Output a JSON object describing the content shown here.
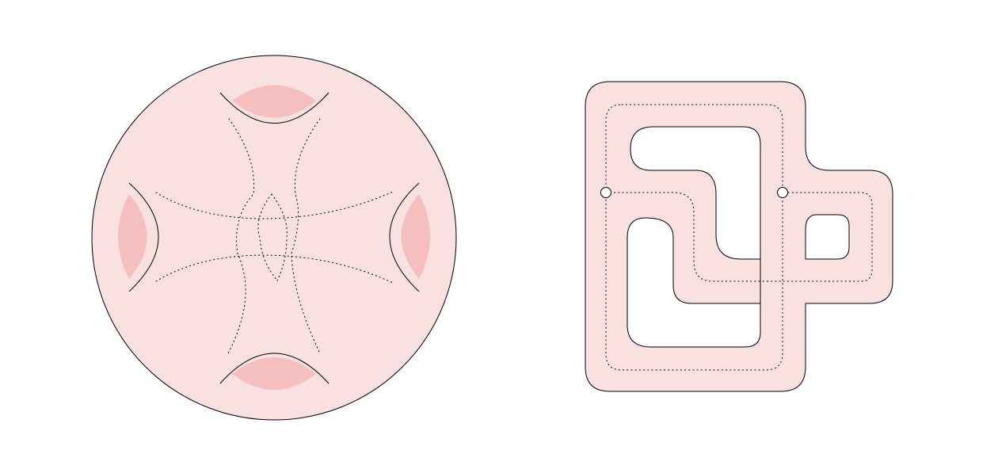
{
  "colors": {
    "surface_fill": "#f9e1e2",
    "disk_fill": "#f5bfbf",
    "stroke": "#000000",
    "background": "#ffffff",
    "marker_fill": "#ffffff"
  },
  "figures": [
    {
      "id": "left",
      "kind": "disk-with-four-boundary-arcs"
    },
    {
      "id": "right",
      "kind": "thickened-curve-surface"
    }
  ]
}
